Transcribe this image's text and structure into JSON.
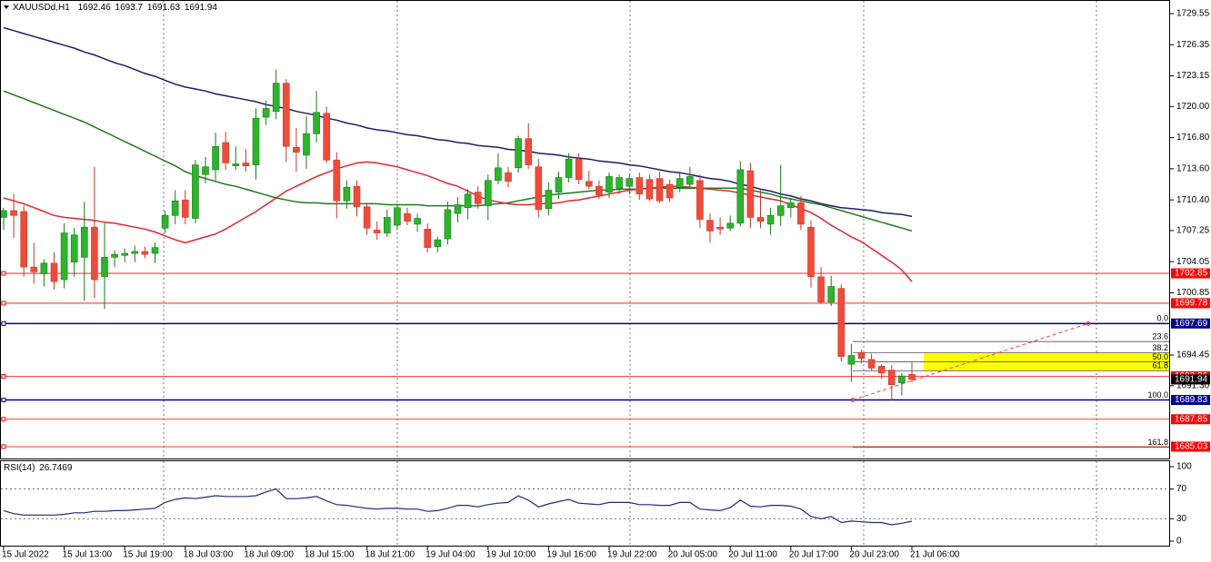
{
  "chart_data": [
    {
      "type": "candlestick",
      "title": "XAUUSDd,H1",
      "categories": [
        "15 Jul 2022",
        null,
        null,
        null,
        null,
        null,
        "15 Jul 13:00",
        null,
        null,
        null,
        null,
        null,
        "15 Jul 19:00",
        null,
        null,
        null,
        null,
        null,
        "18 Jul 03:00",
        null,
        null,
        null,
        null,
        null,
        "18 Jul 09:00",
        null,
        null,
        null,
        null,
        null,
        "18 Jul 15:00",
        null,
        null,
        null,
        null,
        null,
        "18 Jul 21:00",
        null,
        null,
        null,
        null,
        null,
        "19 Jul 04:00",
        null,
        null,
        null,
        null,
        null,
        "19 Jul 10:00",
        null,
        null,
        null,
        null,
        null,
        "19 Jul 16:00",
        null,
        null,
        null,
        null,
        null,
        "19 Jul 22:00",
        null,
        null,
        null,
        null,
        null,
        "20 Jul 05:00",
        null,
        null,
        null,
        null,
        null,
        "20 Jul 11:00",
        null,
        null,
        null,
        null,
        null,
        "20 Jul 17:00",
        null,
        null,
        null,
        null,
        null,
        "20 Jul 23:00",
        null,
        null,
        null,
        null,
        null,
        "21 Jul 06:00"
      ],
      "open": [
        1708.6,
        1709.3,
        1709.2,
        1703.5,
        1702.8,
        1703.9,
        1702.2,
        1704.0,
        1704.5,
        1707.6,
        1702.5,
        1704.5,
        1704.7,
        1704.9,
        1705.1,
        1704.9,
        1707.5,
        1708.8,
        1710.4,
        1708.5,
        1713.0,
        1713.5,
        1716.3,
        1713.9,
        1714.2,
        1714.0,
        1718.9,
        1719.5,
        1722.4,
        1715.8,
        1715.0,
        1717.2,
        1719.3,
        1714.5,
        1710.3,
        1711.8,
        1709.7,
        1707.3,
        1707.0,
        1707.8,
        1709.0,
        1707.9,
        1707.4,
        1705.6,
        1706.4,
        1709.0,
        1709.6,
        1711.2,
        1709.8,
        1712.4,
        1713.2,
        1713.7,
        1716.7,
        1713.8,
        1709.5,
        1711.2,
        1712.7,
        1714.6,
        1712.3,
        1711.8,
        1711.2,
        1711.6,
        1711.8,
        1712.7,
        1712.5,
        1712.6,
        1712.0,
        1711.7,
        1712.0,
        1712.4,
        1708.3,
        1707.6,
        1707.5,
        1708.0,
        1713.4,
        1708.6,
        1707.9,
        1708.8,
        1709.6,
        1710.1,
        1707.6,
        1702.5,
        1699.9,
        1701.3,
        1693.5,
        1694.7,
        1694.0,
        1693.3,
        1692.9,
        1691.6,
        1692.46
      ],
      "high": [
        1709.6,
        1711.0,
        1709.8,
        1706.0,
        1704.3,
        1705.0,
        1708.0,
        1707.5,
        1710.2,
        1713.8,
        1708.0,
        1705.2,
        1705.4,
        1705.7,
        1705.6,
        1706.0,
        1709.3,
        1711.4,
        1711.4,
        1714.5,
        1714.8,
        1717.3,
        1717.4,
        1715.9,
        1715.6,
        1719.8,
        1720.6,
        1723.8,
        1722.8,
        1717.8,
        1719.0,
        1721.6,
        1720.0,
        1715.3,
        1712.4,
        1712.4,
        1710.0,
        1708.2,
        1709.4,
        1710.0,
        1709.6,
        1709.0,
        1708.0,
        1706.6,
        1710.2,
        1710.7,
        1711.5,
        1711.8,
        1713.0,
        1715.2,
        1713.8,
        1717.0,
        1718.3,
        1714.6,
        1712.2,
        1713.3,
        1715.2,
        1715.2,
        1713.4,
        1712.4,
        1713.2,
        1713.0,
        1713.0,
        1713.2,
        1713.0,
        1713.3,
        1712.5,
        1713.3,
        1713.8,
        1713.0,
        1709.0,
        1708.6,
        1708.8,
        1714.4,
        1714.2,
        1711.4,
        1709.6,
        1714.0,
        1710.6,
        1710.8,
        1708.3,
        1703.5,
        1702.6,
        1701.7,
        1695.6,
        1695.0,
        1694.6,
        1693.5,
        1693.4,
        1692.6,
        1693.7
      ],
      "low": [
        1707.3,
        1706.5,
        1702.5,
        1701.8,
        1701.5,
        1701.2,
        1701.3,
        1702.5,
        1700.0,
        1700.3,
        1699.2,
        1703.5,
        1704.0,
        1704.0,
        1704.4,
        1703.9,
        1707.0,
        1707.9,
        1707.9,
        1708.0,
        1712.1,
        1712.4,
        1713.5,
        1713.5,
        1713.3,
        1712.5,
        1718.1,
        1718.7,
        1714.3,
        1713.3,
        1713.6,
        1716.3,
        1714.2,
        1708.5,
        1709.5,
        1708.7,
        1706.8,
        1706.3,
        1706.6,
        1707.3,
        1707.8,
        1707.1,
        1705.0,
        1705.0,
        1705.8,
        1708.1,
        1708.4,
        1709.5,
        1708.3,
        1712.0,
        1711.7,
        1713.2,
        1713.6,
        1708.6,
        1708.8,
        1710.5,
        1712.2,
        1712.0,
        1711.5,
        1710.5,
        1710.6,
        1711.0,
        1711.0,
        1710.4,
        1710.3,
        1710.1,
        1710.2,
        1711.2,
        1711.5,
        1707.5,
        1706.0,
        1706.8,
        1707.2,
        1707.7,
        1707.5,
        1707.5,
        1706.8,
        1707.7,
        1708.6,
        1707.3,
        1701.4,
        1699.7,
        1699.5,
        1693.8,
        1691.7,
        1693.6,
        1692.8,
        1692.0,
        1689.8,
        1690.3,
        1691.63
      ],
      "close": [
        1709.3,
        1708.8,
        1703.5,
        1703.0,
        1703.9,
        1702.0,
        1707.0,
        1706.8,
        1707.6,
        1702.2,
        1704.5,
        1704.8,
        1704.9,
        1705.1,
        1704.8,
        1705.5,
        1708.8,
        1710.3,
        1708.6,
        1714.0,
        1713.8,
        1715.9,
        1714.2,
        1714.1,
        1713.9,
        1718.8,
        1719.8,
        1722.4,
        1715.9,
        1715.3,
        1717.2,
        1719.4,
        1714.5,
        1710.3,
        1711.7,
        1709.7,
        1707.5,
        1707.0,
        1708.6,
        1709.6,
        1708.2,
        1708.5,
        1705.5,
        1706.3,
        1709.4,
        1709.9,
        1711.0,
        1710.0,
        1712.4,
        1713.7,
        1712.3,
        1716.7,
        1714.0,
        1709.4,
        1711.4,
        1712.7,
        1714.6,
        1712.5,
        1711.8,
        1710.9,
        1712.8,
        1712.7,
        1712.6,
        1711.0,
        1710.5,
        1710.3,
        1710.6,
        1712.6,
        1712.8,
        1708.4,
        1707.2,
        1707.4,
        1708.0,
        1713.5,
        1708.6,
        1708.2,
        1708.8,
        1709.8,
        1710.1,
        1707.9,
        1702.5,
        1699.9,
        1701.5,
        1694.3,
        1694.4,
        1694.1,
        1693.1,
        1692.6,
        1691.4,
        1692.3,
        1691.94
      ],
      "up_color": "#2bb52b",
      "down_color": "#ef4b3a",
      "overlays": [
        {
          "color": "#1c1c6e",
          "values": [
            1728.1,
            1727.8,
            1727.5,
            1727.2,
            1726.9,
            1726.6,
            1726.3,
            1726.0,
            1725.6,
            1725.3,
            1724.9,
            1724.5,
            1724.2,
            1723.8,
            1723.4,
            1723.1,
            1722.7,
            1722.3,
            1722.0,
            1721.8,
            1721.6,
            1721.3,
            1721.1,
            1720.9,
            1720.7,
            1720.5,
            1720.2,
            1720.0,
            1719.8,
            1719.5,
            1719.3,
            1719.1,
            1718.8,
            1718.6,
            1718.3,
            1718.1,
            1717.8,
            1717.6,
            1717.5,
            1717.3,
            1717.1,
            1717.0,
            1716.8,
            1716.6,
            1716.5,
            1716.3,
            1716.2,
            1716.0,
            1715.9,
            1715.8,
            1715.6,
            1715.5,
            1715.4,
            1715.2,
            1715.1,
            1715.0,
            1714.8,
            1714.7,
            1714.6,
            1714.4,
            1714.3,
            1714.2,
            1714.0,
            1713.9,
            1713.7,
            1713.5,
            1713.3,
            1713.2,
            1713.0,
            1712.8,
            1712.6,
            1712.5,
            1712.3,
            1712.0,
            1711.8,
            1711.5,
            1711.3,
            1711.0,
            1710.8,
            1710.5,
            1710.3,
            1710.0,
            1709.8,
            1709.6,
            1709.5,
            1709.4,
            1709.3,
            1709.1,
            1709.0,
            1708.9,
            1708.7
          ]
        },
        {
          "color": "#1e7a1e",
          "values": [
            1721.6,
            1721.2,
            1720.8,
            1720.4,
            1720.0,
            1719.6,
            1719.2,
            1718.8,
            1718.4,
            1717.9,
            1717.4,
            1716.9,
            1716.4,
            1715.9,
            1715.4,
            1714.9,
            1714.4,
            1713.9,
            1713.3,
            1712.9,
            1712.6,
            1712.3,
            1712.0,
            1711.8,
            1711.5,
            1711.2,
            1710.9,
            1710.6,
            1710.4,
            1710.2,
            1710.1,
            1710.1,
            1710.0,
            1710.0,
            1710.0,
            1710.0,
            1710.0,
            1710.0,
            1709.9,
            1709.9,
            1709.9,
            1709.9,
            1709.8,
            1709.8,
            1709.8,
            1709.8,
            1709.8,
            1709.8,
            1709.9,
            1710.0,
            1710.1,
            1710.3,
            1710.5,
            1710.7,
            1710.9,
            1711.0,
            1711.1,
            1711.2,
            1711.3,
            1711.4,
            1711.4,
            1711.5,
            1711.5,
            1711.5,
            1711.6,
            1711.6,
            1711.6,
            1711.6,
            1711.6,
            1711.6,
            1711.6,
            1711.6,
            1711.6,
            1711.6,
            1711.4,
            1711.2,
            1711.0,
            1710.7,
            1710.5,
            1710.3,
            1710.1,
            1709.9,
            1709.6,
            1709.3,
            1709.0,
            1708.7,
            1708.4,
            1708.1,
            1707.8,
            1707.5,
            1707.2
          ]
        },
        {
          "color": "#e3262b",
          "values": [
            1710.6,
            1710.3,
            1710.0,
            1709.6,
            1709.2,
            1708.8,
            1708.6,
            1708.5,
            1708.4,
            1708.3,
            1708.1,
            1708.0,
            1707.8,
            1707.6,
            1707.4,
            1707.1,
            1706.7,
            1706.3,
            1706.0,
            1706.3,
            1706.6,
            1706.9,
            1707.4,
            1708.0,
            1708.6,
            1709.2,
            1709.9,
            1710.6,
            1711.3,
            1711.8,
            1712.3,
            1712.8,
            1713.2,
            1713.6,
            1713.9,
            1714.2,
            1714.3,
            1714.2,
            1714.0,
            1713.8,
            1713.5,
            1713.2,
            1712.9,
            1712.5,
            1712.1,
            1711.8,
            1711.3,
            1710.8,
            1710.4,
            1710.2,
            1710.0,
            1709.9,
            1709.9,
            1710.0,
            1710.0,
            1710.1,
            1710.3,
            1710.4,
            1710.6,
            1710.8,
            1711.0,
            1711.2,
            1711.4,
            1711.5,
            1711.6,
            1711.7,
            1711.8,
            1711.8,
            1711.7,
            1711.6,
            1711.5,
            1711.4,
            1711.3,
            1711.1,
            1710.9,
            1710.7,
            1710.5,
            1710.3,
            1709.9,
            1709.5,
            1709.1,
            1708.5,
            1707.8,
            1707.2,
            1706.6,
            1706.1,
            1705.4,
            1704.7,
            1704.0,
            1703.2,
            1702.0
          ]
        }
      ],
      "ylim": [
        1683.72,
        1730.95
      ],
      "yticks": [
        1729.55,
        1726.35,
        1723.15,
        {
          "value": 1720,
          "label": "1720.00"
        },
        {
          "value": 1716.8,
          "label": "1716.80"
        },
        {
          "value": 1713.6,
          "label": "1713.60"
        },
        {
          "value": 1710.4,
          "label": "1710.40"
        },
        1707.25,
        1704.05,
        1700.85,
        1694.45,
        {
          "value": 1691.3,
          "label": "1691.30"
        }
      ],
      "levels": [
        {
          "value": 1702.85,
          "color": "#ff0000"
        },
        {
          "value": 1699.78,
          "color": "#ff0000"
        },
        {
          "value": 1697.69,
          "color": "#00008b"
        },
        {
          "value": 1692.26,
          "color": "#ff0000"
        },
        {
          "value": 1689.83,
          "color": "#00008b"
        },
        {
          "value": 1687.85,
          "color": "#ff0000"
        },
        {
          "value": 1685.03,
          "color": "#ff0000"
        }
      ],
      "fibonacci": {
        "from": 1697.69,
        "to": 1689.83,
        "color": "#555555",
        "trend_color": "#ff3b3b",
        "levels": [
          {
            "value": 0,
            "label": "0.0"
          },
          23.6,
          38.2,
          {
            "value": 50,
            "label": "50.0"
          },
          61.8,
          {
            "value": 100,
            "label": "100.0"
          },
          161.8
        ],
        "zone": {
          "from": 38.2,
          "to": 61.8,
          "color": "#ffff00"
        }
      }
    },
    {
      "type": "line",
      "title": "RSI(14)",
      "color": "#1f2a7a",
      "values": [
        41,
        37,
        35,
        35,
        35,
        35,
        36,
        38,
        38,
        40,
        40,
        41,
        41,
        42,
        43,
        44,
        52,
        56,
        58,
        57,
        59,
        61,
        60,
        60,
        60,
        61,
        66,
        70,
        57,
        57,
        58,
        60,
        54,
        49,
        48,
        46,
        44,
        43,
        44,
        44,
        43,
        43,
        40,
        41,
        44,
        48,
        48,
        46,
        49,
        51,
        52,
        61,
        55,
        46,
        50,
        53,
        56,
        51,
        50,
        49,
        52,
        52,
        52,
        49,
        49,
        48,
        48,
        52,
        52,
        43,
        42,
        41,
        45,
        55,
        47,
        46,
        48,
        48,
        47,
        43,
        33,
        30,
        33,
        25,
        27,
        26,
        25,
        25,
        22,
        24,
        26.7469
      ],
      "ylim": [
        -7.3,
        108.5
      ],
      "yticks": [
        100,
        70,
        30,
        0
      ],
      "levels": [
        70,
        30
      ]
    }
  ]
}
